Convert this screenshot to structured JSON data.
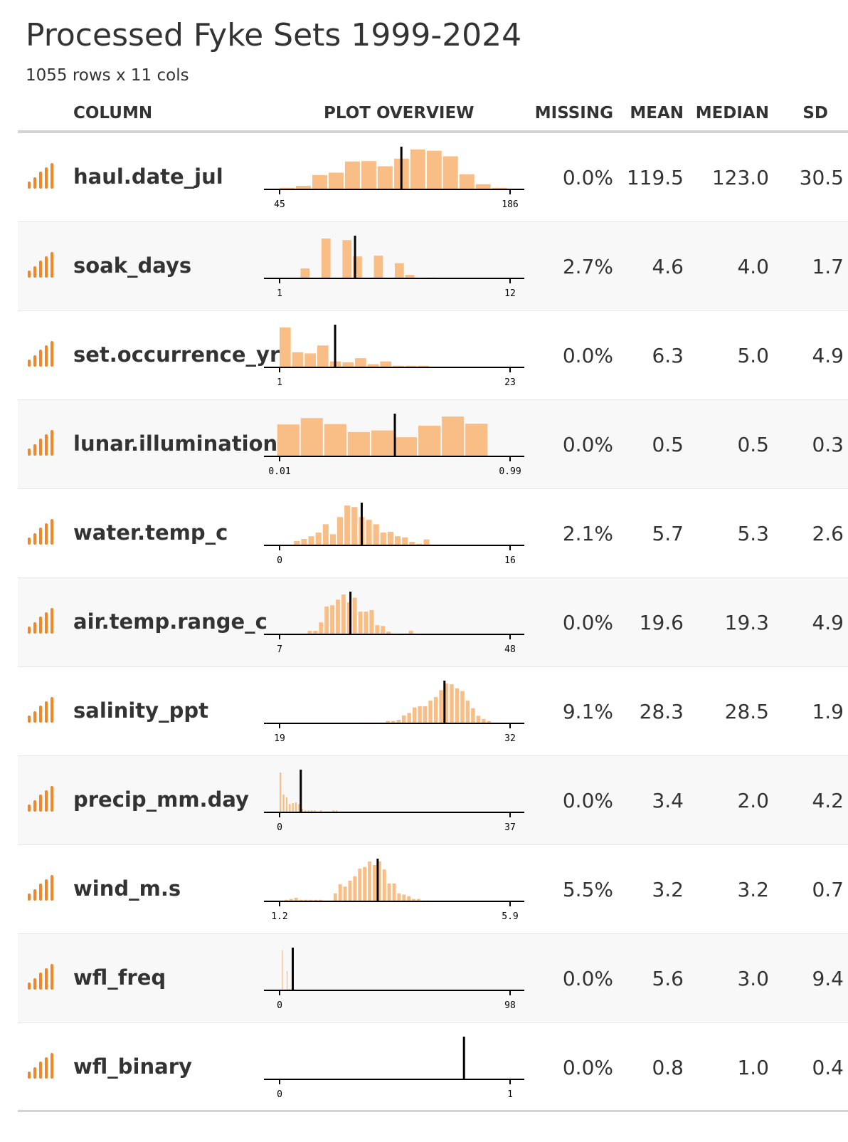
{
  "title": "Processed Fyke Sets 1999-2024",
  "subtitle": "1055 rows x 11 cols",
  "headers": {
    "column": "COLUMN",
    "plot": "PLOT OVERVIEW",
    "missing": "MISSING",
    "mean": "MEAN",
    "median": "MEDIAN",
    "sd": "SD"
  },
  "colors": {
    "bar": "#F9BE85",
    "icon": "#F18727",
    "mean_line": "#000000",
    "axis": "#000000",
    "text": "#333333"
  },
  "type_icon": "numeric-bars-icon",
  "rows": [
    {
      "name": "haul.date_jul",
      "missing": "0.0%",
      "mean": "119.5",
      "median": "123.0",
      "sd": "30.5"
    },
    {
      "name": "soak_days",
      "missing": "2.7%",
      "mean": "4.6",
      "median": "4.0",
      "sd": "1.7"
    },
    {
      "name": "set.occurrence_yr",
      "missing": "0.0%",
      "mean": "6.3",
      "median": "5.0",
      "sd": "4.9"
    },
    {
      "name": "lunar.illumination",
      "missing": "0.0%",
      "mean": "0.5",
      "median": "0.5",
      "sd": "0.3"
    },
    {
      "name": "water.temp_c",
      "missing": "2.1%",
      "mean": "5.7",
      "median": "5.3",
      "sd": "2.6"
    },
    {
      "name": "air.temp.range_c",
      "missing": "0.0%",
      "mean": "19.6",
      "median": "19.3",
      "sd": "4.9"
    },
    {
      "name": "salinity_ppt",
      "missing": "9.1%",
      "mean": "28.3",
      "median": "28.5",
      "sd": "1.9"
    },
    {
      "name": "precip_mm.day",
      "missing": "0.0%",
      "mean": "3.4",
      "median": "2.0",
      "sd": "4.2"
    },
    {
      "name": "wind_m.s",
      "missing": "5.5%",
      "mean": "3.2",
      "median": "3.2",
      "sd": "0.7"
    },
    {
      "name": "wfl_freq",
      "missing": "0.0%",
      "mean": "5.6",
      "median": "3.0",
      "sd": "9.4"
    },
    {
      "name": "wfl_binary",
      "missing": "0.0%",
      "mean": "0.8",
      "median": "1.0",
      "sd": "0.4"
    }
  ],
  "chart_data": [
    {
      "type": "bar",
      "variable": "haul.date_jul",
      "min_label": "45",
      "max_label": "186",
      "xlim": [
        45,
        186
      ],
      "mean": 119.5,
      "bin_width": 10,
      "bins": [
        45,
        55,
        65,
        75,
        85,
        95,
        105,
        115,
        125,
        135,
        145,
        155,
        165,
        175
      ],
      "values": [
        4,
        9,
        36,
        42,
        70,
        71,
        58,
        77,
        100,
        97,
        83,
        38,
        13,
        4
      ]
    },
    {
      "type": "bar",
      "variable": "soak_days",
      "min_label": "1",
      "max_label": "12",
      "xlim": [
        1,
        12
      ],
      "mean": 4.6,
      "bin_width": 0.5,
      "bins": [
        2,
        2.5,
        3,
        3.5,
        4,
        4.5,
        5,
        5.5,
        6,
        6.5,
        7,
        7.5,
        8,
        8.5
      ],
      "values": [
        25,
        0,
        100,
        0,
        96,
        55,
        0,
        57,
        0,
        38,
        9,
        0,
        2,
        0
      ]
    },
    {
      "type": "bar",
      "variable": "set.occurrence_yr",
      "min_label": "1",
      "max_label": "23",
      "xlim": [
        1,
        23
      ],
      "mean": 6.3,
      "bin_width": 1.2,
      "bins": [
        1,
        2.2,
        3.4,
        4.6,
        5.8,
        7,
        8.2,
        9.4,
        10.6,
        11.8,
        13,
        14.2
      ],
      "values": [
        100,
        38,
        35,
        55,
        15,
        13,
        23,
        8,
        15,
        4,
        4,
        4
      ]
    },
    {
      "type": "bar",
      "variable": "lunar.illumination",
      "min_label": "0.01",
      "max_label": "0.99",
      "xlim": [
        0.01,
        0.99
      ],
      "mean": 0.5,
      "bin_width": 0.1,
      "bins": [
        0.0,
        0.1,
        0.2,
        0.3,
        0.4,
        0.5,
        0.6,
        0.7,
        0.8,
        0.9
      ],
      "values": [
        80,
        96,
        81,
        61,
        65,
        48,
        77,
        100,
        82,
        0
      ]
    },
    {
      "type": "bar",
      "variable": "water.temp_c",
      "min_label": "0",
      "max_label": "16",
      "xlim": [
        0,
        16
      ],
      "mean": 5.7,
      "bin_width": 0.5,
      "bins": [
        1,
        1.5,
        2,
        2.5,
        3,
        3.5,
        4,
        4.5,
        5,
        5.5,
        6,
        6.5,
        7,
        7.5,
        8,
        8.5,
        9,
        9.5,
        10,
        10.5,
        11,
        11.5,
        12
      ],
      "values": [
        11,
        16,
        23,
        32,
        53,
        28,
        71,
        100,
        96,
        71,
        64,
        53,
        32,
        34,
        23,
        20,
        9,
        4,
        15,
        2,
        2,
        2,
        2
      ]
    },
    {
      "type": "bar",
      "variable": "air.temp.range_c",
      "min_label": "7",
      "max_label": "48",
      "xlim": [
        7,
        48
      ],
      "mean": 19.6,
      "bin_width": 1,
      "bins": [
        12,
        13,
        14,
        15,
        16,
        17,
        18,
        19,
        20,
        21,
        22,
        23,
        24,
        25,
        26,
        27,
        28,
        29,
        30,
        31
      ],
      "values": [
        9,
        9,
        30,
        70,
        73,
        87,
        100,
        80,
        92,
        57,
        57,
        61,
        23,
        21,
        7,
        0,
        0,
        0,
        9,
        0
      ]
    },
    {
      "type": "bar",
      "variable": "salinity_ppt",
      "min_label": "19",
      "max_label": "32",
      "xlim": [
        19,
        32
      ],
      "mean": 28.3,
      "bin_width": 0.3,
      "bins": [
        23.5,
        23.8,
        24.1,
        24.4,
        24.7,
        25.0,
        25.3,
        25.6,
        25.9,
        26.2,
        26.5,
        26.8,
        27.1,
        27.4,
        27.7,
        28.0,
        28.3,
        28.6,
        28.9,
        29.2,
        29.5,
        29.8,
        30.1,
        30.4,
        30.7
      ],
      "values": [
        2,
        2,
        2,
        2,
        2,
        6,
        6,
        9,
        20,
        26,
        40,
        43,
        43,
        57,
        66,
        83,
        100,
        98,
        88,
        81,
        57,
        38,
        19,
        11,
        6
      ]
    },
    {
      "type": "bar",
      "variable": "precip_mm.day",
      "min_label": "0",
      "max_label": "37",
      "xlim": [
        0,
        37
      ],
      "mean": 3.4,
      "bin_width": 0.5,
      "bins": [
        0,
        0.5,
        1,
        1.5,
        2,
        2.5,
        3,
        3.5,
        4,
        4.5,
        5,
        5.5,
        6,
        6.5,
        7,
        7.5,
        8,
        8.5,
        9,
        9.5,
        10,
        10.5
      ],
      "values": [
        100,
        45,
        38,
        21,
        23,
        25,
        21,
        9,
        5,
        5,
        5,
        5,
        0,
        5,
        0,
        0,
        0,
        5,
        5,
        0,
        0,
        0
      ]
    },
    {
      "type": "bar",
      "variable": "wind_m.s",
      "min_label": "1.2",
      "max_label": "5.9",
      "xlim": [
        1.2,
        5.9
      ],
      "mean": 3.2,
      "bin_width": 0.1,
      "bins": [
        1.3,
        1.4,
        1.5,
        1.6,
        1.7,
        1.8,
        1.9,
        2.0,
        2.1,
        2.2,
        2.3,
        2.4,
        2.5,
        2.6,
        2.7,
        2.8,
        2.9,
        3.0,
        3.1,
        3.2,
        3.3,
        3.4,
        3.5,
        3.6,
        3.7,
        3.8,
        3.9,
        4.0,
        4.1,
        4.2
      ],
      "values": [
        4,
        6,
        9,
        4,
        4,
        4,
        4,
        4,
        2,
        2,
        20,
        43,
        37,
        52,
        63,
        82,
        86,
        100,
        91,
        100,
        80,
        45,
        45,
        20,
        17,
        13,
        6,
        6,
        2,
        2
      ]
    },
    {
      "type": "bar",
      "variable": "wfl_freq",
      "min_label": "0",
      "max_label": "98",
      "xlim": [
        0,
        98
      ],
      "mean": 5.6,
      "bin_width": 1,
      "bins": [
        1,
        3,
        4,
        6
      ],
      "values": [
        100,
        48,
        4,
        4
      ]
    },
    {
      "type": "bar",
      "variable": "wfl_binary",
      "min_label": "0",
      "max_label": "1",
      "xlim": [
        0,
        1
      ],
      "mean": 0.8,
      "bin_width": 0.1,
      "bins": [],
      "values": []
    }
  ]
}
